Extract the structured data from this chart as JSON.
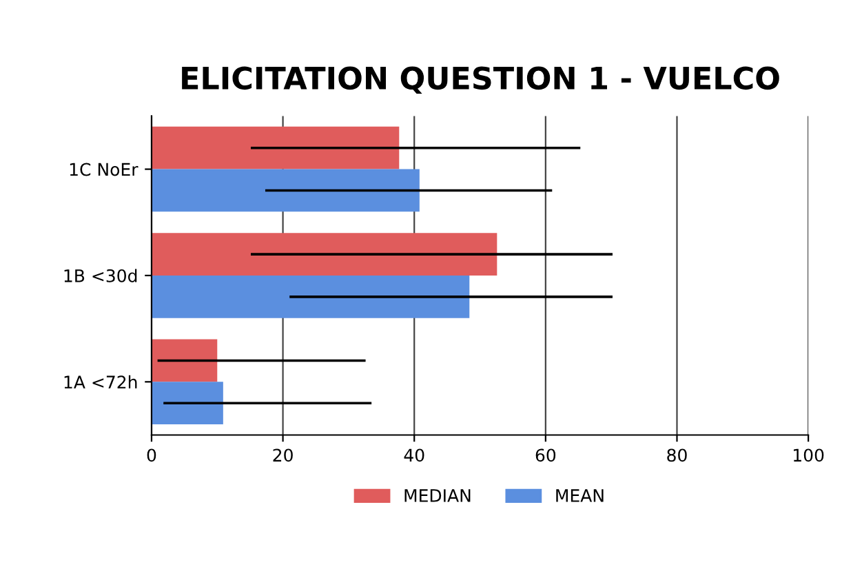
{
  "chart_data": {
    "type": "bar",
    "orientation": "horizontal",
    "title": "ELICITATION QUESTION 1 - VUELCO",
    "categories": [
      "1C NoEr",
      "1B <30d",
      "1A <72h"
    ],
    "series": [
      {
        "name": "MEDIAN",
        "color": "#e05c5c",
        "values": [
          37.7,
          52.6,
          10.0
        ],
        "errors": [
          [
            15.3,
            65.1
          ],
          [
            15.3,
            70.0
          ],
          [
            1.1,
            32.4
          ]
        ]
      },
      {
        "name": "MEAN",
        "color": "#5b8fdf",
        "values": [
          40.8,
          48.4,
          10.9
        ],
        "errors": [
          [
            17.5,
            60.8
          ],
          [
            21.2,
            70.0
          ],
          [
            2.0,
            33.3
          ]
        ]
      }
    ],
    "xlim": [
      0,
      100
    ],
    "xticks": [
      0,
      20,
      40,
      60,
      80,
      100
    ],
    "grid": "x",
    "legend": "bottom"
  }
}
